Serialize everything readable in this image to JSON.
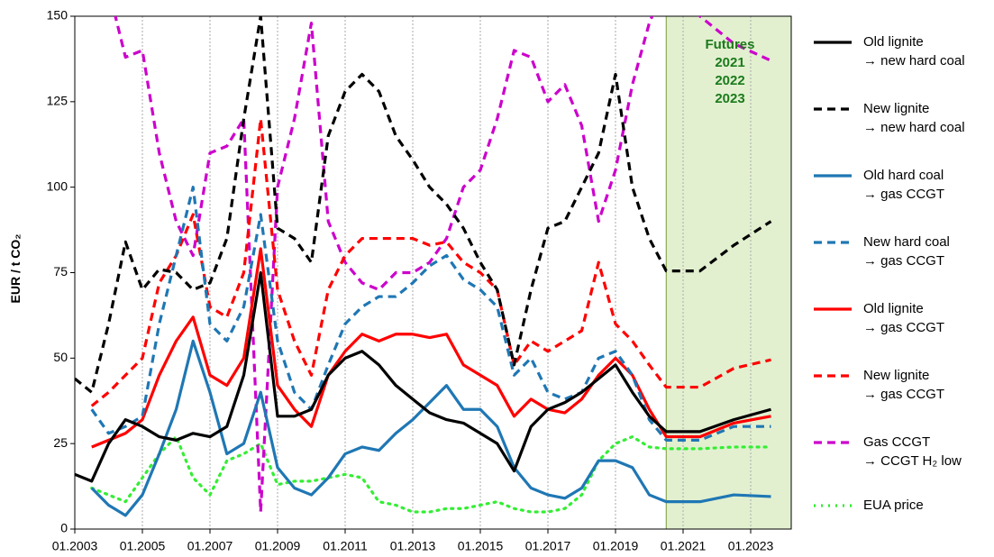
{
  "chart_data": {
    "type": "line",
    "y_label": "EUR / t CO₂",
    "annotation": "Futures\n2021\n2022\n2023",
    "shade_from": 2020.5,
    "xlim": [
      2003,
      2024.2
    ],
    "ylim": [
      0,
      150
    ],
    "xticks": [
      {
        "value": 2003,
        "label": "01.2003"
      },
      {
        "value": 2005,
        "label": "01.2005"
      },
      {
        "value": 2007,
        "label": "01.2007"
      },
      {
        "value": 2009,
        "label": "01.2009"
      },
      {
        "value": 2011,
        "label": "01.2011"
      },
      {
        "value": 2013,
        "label": "01.2013"
      },
      {
        "value": 2015,
        "label": "01.2015"
      },
      {
        "value": 2017,
        "label": "01.2017"
      },
      {
        "value": 2019,
        "label": "01.2019"
      },
      {
        "value": 2021,
        "label": "01.2021"
      },
      {
        "value": 2023,
        "label": "01.2023"
      }
    ],
    "yticks": [
      0,
      25,
      50,
      75,
      100,
      125,
      150
    ],
    "grid": "x",
    "legend": "right",
    "x": [
      2003,
      2003.5,
      2004,
      2004.5,
      2005,
      2005.5,
      2006,
      2006.5,
      2007,
      2007.5,
      2008,
      2008.5,
      2009,
      2009.5,
      2010,
      2010.5,
      2011,
      2011.5,
      2012,
      2012.5,
      2013,
      2013.5,
      2014,
      2014.5,
      2015,
      2015.5,
      2016,
      2016.5,
      2017,
      2017.5,
      2018,
      2018.5,
      2019,
      2019.5,
      2020,
      2020.5,
      2021.5,
      2022.5,
      2023.6
    ],
    "series": [
      {
        "name": "Old lignite\n→ new hard coal",
        "color": "#000000",
        "dash": "solid",
        "values": [
          16,
          14,
          25,
          32,
          30,
          27,
          26,
          28,
          27,
          30,
          45,
          75,
          33,
          33,
          35,
          45,
          50,
          52,
          48,
          42,
          38,
          34,
          32,
          31,
          28,
          25,
          17,
          30,
          35,
          37,
          40,
          44,
          48,
          40,
          33,
          28.5,
          28.5,
          32,
          35
        ]
      },
      {
        "name": "New lignite\n→ new hard coal",
        "color": "#000000",
        "dash": "dashed",
        "values": [
          44,
          40,
          60,
          84,
          70,
          76,
          75,
          70,
          72,
          85,
          120,
          150,
          88,
          85,
          78,
          115,
          128,
          133,
          128,
          115,
          108,
          100,
          95,
          88,
          78,
          70,
          48,
          70,
          88,
          90,
          100,
          110,
          133,
          100,
          85,
          75.5,
          75.5,
          83,
          90
        ]
      },
      {
        "name": "Old hard coal\n→ gas CCGT",
        "color": "#1f77b4",
        "dash": "solid",
        "values": [
          null,
          12,
          7,
          4,
          10,
          22,
          35,
          55,
          40,
          22,
          25,
          40,
          18,
          12,
          10,
          15,
          22,
          24,
          23,
          28,
          32,
          37,
          42,
          35,
          35,
          30,
          18,
          12,
          10,
          9,
          12,
          20,
          20,
          18,
          10,
          8,
          8,
          10,
          9.5
        ]
      },
      {
        "name": "New hard coal\n→ gas CCGT",
        "color": "#1f77b4",
        "dash": "dashed",
        "values": [
          null,
          35,
          28,
          30,
          33,
          60,
          80,
          100,
          60,
          55,
          65,
          92,
          55,
          40,
          35,
          48,
          60,
          65,
          68,
          68,
          72,
          77,
          80,
          73,
          70,
          65,
          45,
          50,
          40,
          38,
          40,
          50,
          52,
          45,
          32,
          26,
          26,
          30,
          30
        ]
      },
      {
        "name": "Old lignite\n→ gas CCGT",
        "color": "#ff0000",
        "dash": "solid",
        "values": [
          null,
          24,
          26,
          28,
          32,
          45,
          55,
          62,
          45,
          42,
          50,
          82,
          42,
          35,
          30,
          45,
          52,
          57,
          55,
          57,
          57,
          56,
          57,
          48,
          45,
          42,
          33,
          38,
          35,
          34,
          38,
          45,
          50,
          45,
          35,
          27,
          27,
          31,
          33
        ]
      },
      {
        "name": "New lignite\n→ gas CCGT",
        "color": "#ff0000",
        "dash": "dashed",
        "values": [
          null,
          36,
          40,
          45,
          50,
          72,
          80,
          92,
          65,
          62,
          75,
          120,
          70,
          55,
          45,
          70,
          80,
          85,
          85,
          85,
          85,
          83,
          84,
          78,
          75,
          70,
          48,
          55,
          52,
          55,
          58,
          78,
          60,
          55,
          48,
          41.5,
          41.5,
          47,
          49.5
        ]
      },
      {
        "name": "Gas CCGT\n→ CCGT H₂ low",
        "color": "#cc00cc",
        "dash": "dashed",
        "values": [
          null,
          165,
          158,
          138,
          140,
          110,
          90,
          80,
          110,
          112,
          120,
          5,
          100,
          120,
          148,
          90,
          78,
          72,
          70,
          75,
          75,
          78,
          85,
          100,
          105,
          120,
          140,
          138,
          125,
          130,
          118,
          90,
          105,
          130,
          148,
          160,
          150,
          142,
          137
        ]
      },
      {
        "name": "EUA price",
        "color": "#33ee33",
        "dash": "dotted",
        "values": [
          null,
          12,
          10,
          8,
          15,
          22,
          27,
          15,
          10,
          20,
          22,
          25,
          13,
          14,
          14,
          15,
          16,
          15,
          8,
          7,
          5,
          5,
          6,
          6,
          7,
          8,
          6,
          5,
          5,
          6,
          10,
          20,
          25,
          27,
          24,
          23.5,
          23.5,
          24,
          24
        ]
      }
    ]
  }
}
